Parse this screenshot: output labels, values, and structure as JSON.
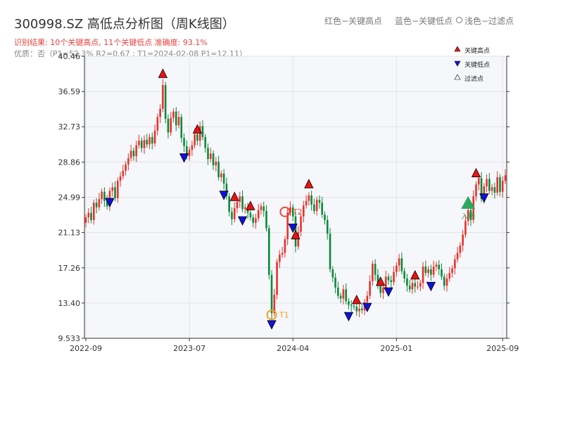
{
  "header": {
    "title": "300998.SZ 高低点分析图（周K线图）",
    "subtitle": "识别结果: 10个关键高点, 11个关键低点  准确度: 93.1%",
    "quality": "优质：否（P1=52.3%  R2=0.67 ; T1=2024-02-08 P1=12.11）",
    "hint_red": "红色−关键高点",
    "hint_blue": "蓝色−关键低点",
    "hint_light": "浅色−过滤点"
  },
  "legend": {
    "high": "关键高点",
    "low": "关键低点",
    "filtered": "过滤点"
  },
  "colors": {
    "up": "#e8312c",
    "down": "#0a8a3a",
    "high": "#ee1111",
    "low": "#1111dd",
    "entry": "#2aa860",
    "target": "#e74c3c",
    "t1": "#f0a020",
    "plot_bg": "#f5f7fa"
  },
  "markers": {
    "t1": "T1",
    "t2": "T2",
    "entry": "入场"
  },
  "chart_data": {
    "type": "candlestick",
    "title": "300998.SZ 高低点分析图（周K线图）",
    "ylim": [
      9.533,
      40.46
    ],
    "y_ticks": [
      "40.46",
      "36.59",
      "32.73",
      "28.86",
      "24.99",
      "21.13",
      "17.26",
      "13.40",
      "9.533"
    ],
    "y_tick_values": [
      40.46,
      36.59,
      32.73,
      28.86,
      24.99,
      21.13,
      17.26,
      13.4,
      9.533
    ],
    "x_ticks": [
      "2022-09",
      "2023-07",
      "2024-04",
      "2025-01",
      "2025-09"
    ],
    "x_tick_index": [
      0,
      39,
      78,
      117,
      157
    ],
    "grid": true,
    "legend_position": "top-right",
    "closes": [
      22.8,
      23.3,
      22.5,
      24.4,
      23.9,
      24.8,
      25.6,
      24.6,
      24.0,
      25.7,
      26.1,
      24.9,
      26.8,
      27.3,
      27.9,
      28.6,
      29.3,
      30.1,
      29.5,
      30.7,
      31.2,
      30.4,
      31.3,
      30.8,
      31.6,
      30.9,
      32.3,
      33.8,
      34.7,
      37.3,
      33.6,
      32.1,
      33.7,
      34.4,
      32.9,
      33.8,
      31.5,
      30.6,
      29.5,
      30.2,
      30.7,
      31.9,
      31.2,
      32.8,
      31.6,
      30.4,
      29.2,
      29.8,
      28.5,
      28.9,
      27.2,
      27.6,
      26.5,
      25.1,
      23.4,
      22.6,
      23.8,
      24.5,
      25.1,
      23.7,
      23.9,
      23.3,
      22.8,
      22.2,
      22.7,
      23.6,
      24.0,
      23.5,
      21.6,
      16.5,
      12.3,
      14.3,
      17.9,
      18.7,
      18.9,
      20.4,
      23.3,
      23.9,
      22.9,
      19.6,
      21.2,
      22.9,
      24.1,
      24.6,
      25.2,
      24.2,
      23.5,
      24.7,
      24.4,
      23.1,
      22.5,
      21.0,
      17.1,
      16.2,
      15.1,
      14.2,
      13.9,
      14.9,
      13.6,
      13.2,
      13.1,
      13.0,
      12.5,
      12.8,
      12.6,
      13.5,
      14.2,
      15.8,
      17.7,
      16.5,
      15.3,
      14.5,
      15.1,
      16.3,
      15.9,
      15.7,
      16.8,
      17.5,
      18.3,
      16.9,
      16.1,
      15.3,
      14.9,
      15.6,
      15.2,
      15.2,
      15.6,
      17.4,
      16.7,
      17.1,
      16.5,
      17.4,
      17.6,
      17.1,
      16.3,
      15.3,
      16.1,
      16.7,
      17.2,
      18.2,
      18.9,
      19.7,
      20.9,
      22.4,
      23.6,
      22.5,
      25.1,
      26.4,
      27.1,
      24.8,
      26.2,
      27.0,
      25.7,
      26.1,
      25.5,
      27.2,
      25.6,
      26.8,
      27.4
    ]
  }
}
